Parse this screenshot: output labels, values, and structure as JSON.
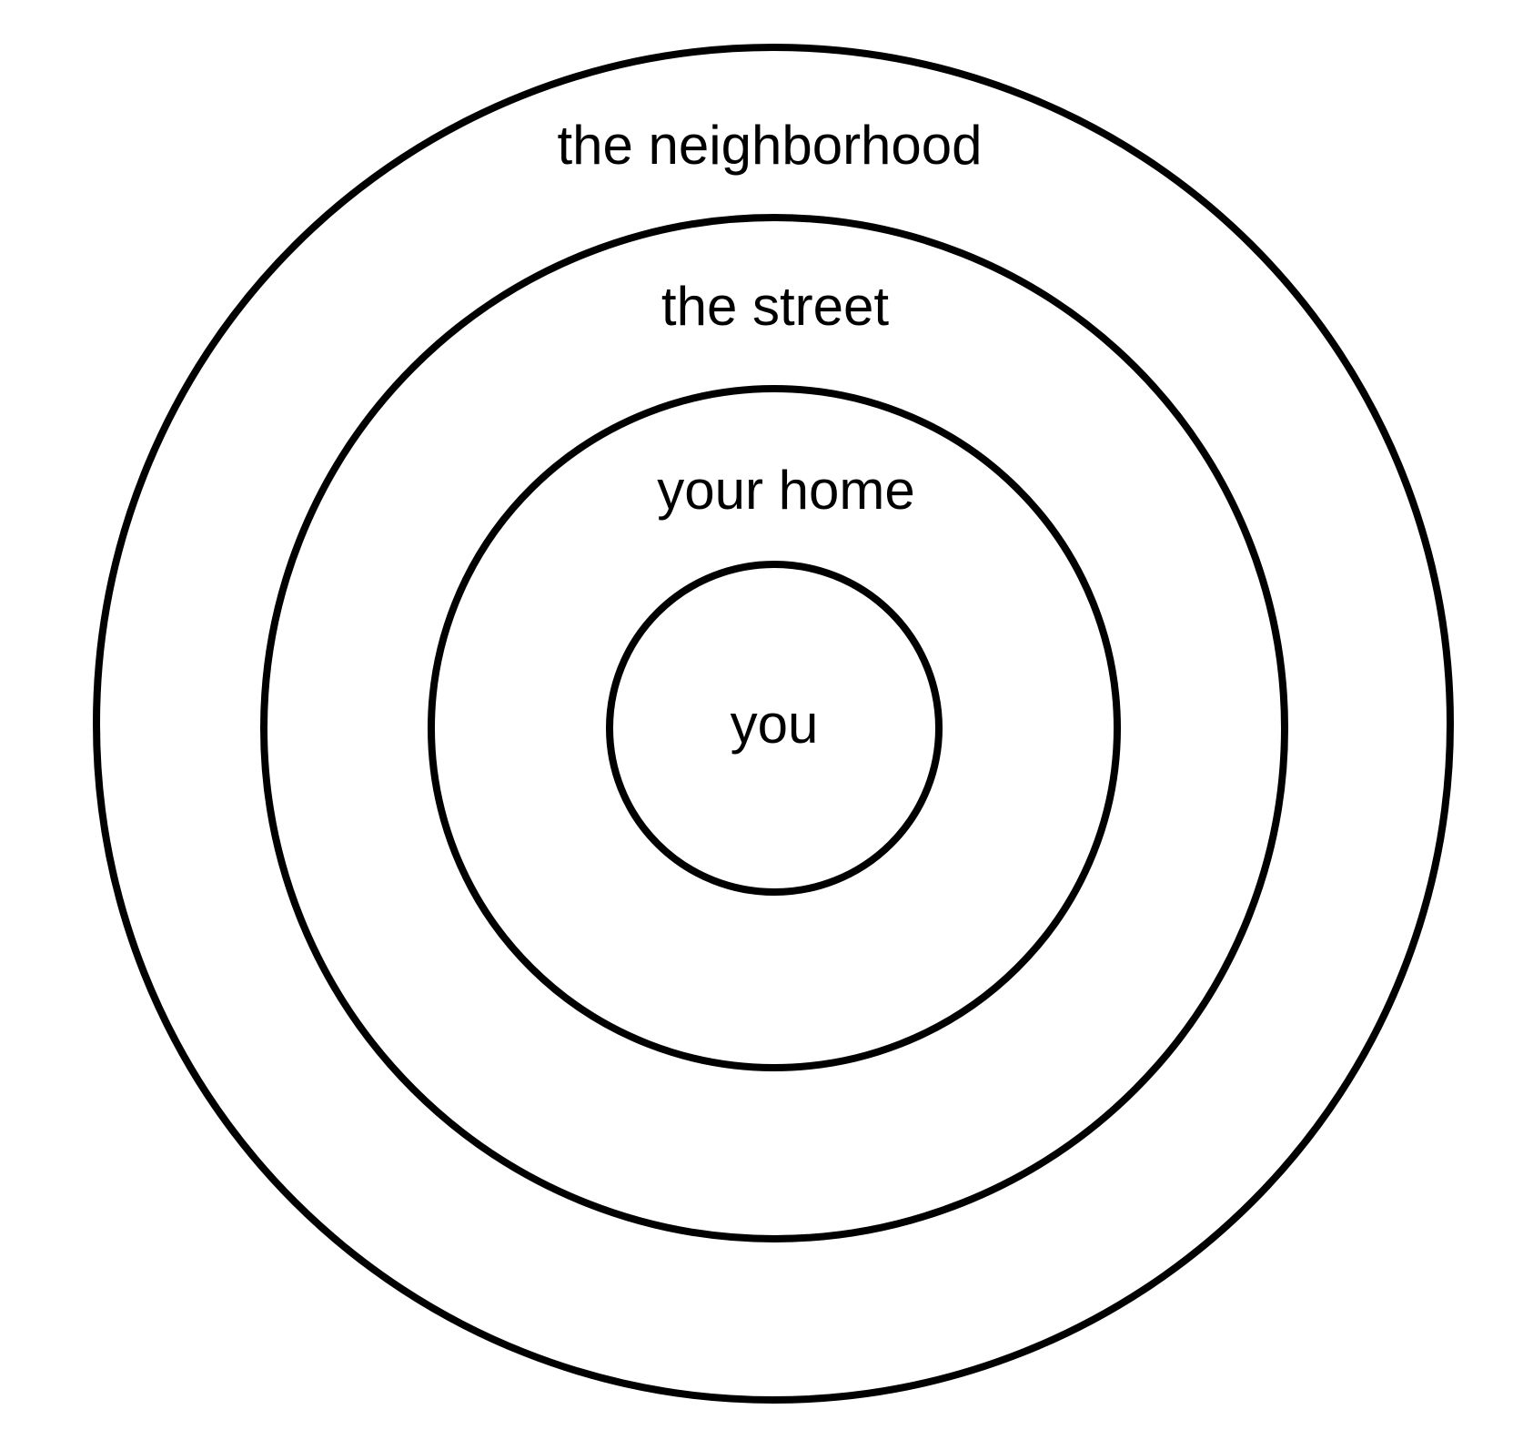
{
  "diagram": {
    "type": "concentric-circles",
    "rings": [
      {
        "label": "the neighborhood"
      },
      {
        "label": "the street"
      },
      {
        "label": "your home"
      },
      {
        "label": "you"
      }
    ],
    "stroke_color": "#000000",
    "background": "#ffffff"
  }
}
